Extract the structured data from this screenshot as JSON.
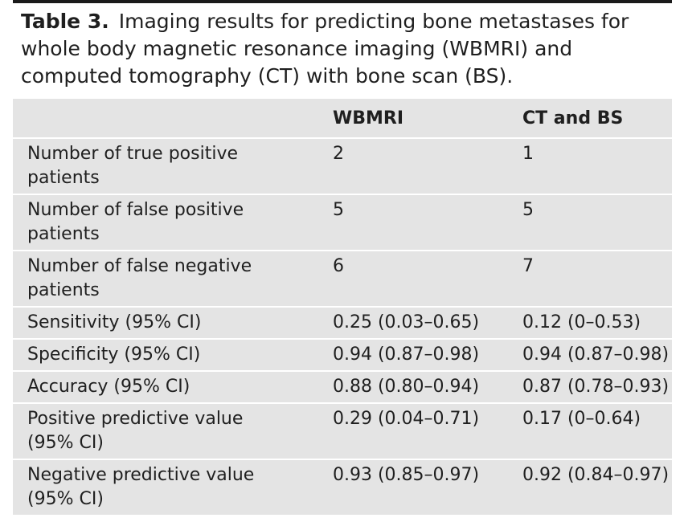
{
  "caption": {
    "label": "Table 3.",
    "text": "Imaging results for predicting bone metastases for whole body magnetic resonance imaging (WBMRI) and computed tomography (CT) with bone scan (BS)."
  },
  "table": {
    "headers": [
      "",
      "WBMRI",
      "CT and BS"
    ],
    "rows": [
      {
        "label": "Number of true positive patients",
        "wbmri": "2",
        "ctbs": "1"
      },
      {
        "label": "Number of false positive patients",
        "wbmri": "5",
        "ctbs": "5"
      },
      {
        "label": "Number of false negative patients",
        "wbmri": "6",
        "ctbs": "7"
      },
      {
        "label": "Sensitivity (95% CI)",
        "wbmri": "0.25 (0.03–0.65)",
        "ctbs": "0.12 (0–0.53)"
      },
      {
        "label": "Specificity (95% CI)",
        "wbmri": "0.94 (0.87–0.98)",
        "ctbs": "0.94 (0.87–0.98)"
      },
      {
        "label": "Accuracy (95% CI)",
        "wbmri": "0.88 (0.80–0.94)",
        "ctbs": "0.87 (0.78–0.93)"
      },
      {
        "label": "Positive predictive value (95% CI)",
        "wbmri": "0.29 (0.04–0.71)",
        "ctbs": "0.17 (0–0.64)"
      },
      {
        "label": "Negative predictive value (95% CI)",
        "wbmri": "0.93 (0.85–0.97)",
        "ctbs": "0.92 (0.84–0.97)"
      }
    ]
  }
}
